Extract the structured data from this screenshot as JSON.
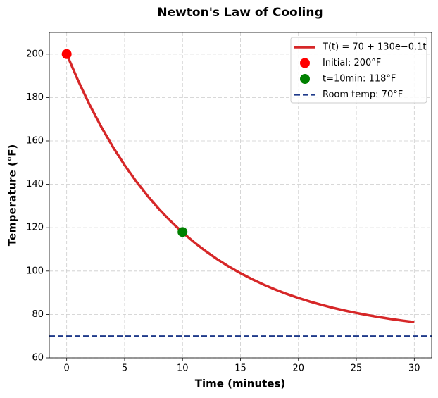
{
  "chart_data": {
    "type": "line",
    "title": "Newton's Law of Cooling",
    "xlabel": "Time (minutes)",
    "ylabel": "Temperature (°F)",
    "xlim": [
      -1.5,
      31.5
    ],
    "ylim": [
      60,
      210
    ],
    "xticks": [
      0,
      5,
      10,
      15,
      20,
      25,
      30
    ],
    "yticks": [
      60,
      80,
      100,
      120,
      140,
      160,
      180,
      200
    ],
    "grid": true,
    "legend": "upper right",
    "series": [
      {
        "name": "T(t) = 70 + 130e−0.1t",
        "type": "line",
        "color": "#d62728",
        "x": [
          0,
          1,
          2,
          3,
          4,
          5,
          6,
          7,
          8,
          9,
          10,
          11,
          12,
          13,
          14,
          15,
          16,
          17,
          18,
          19,
          20,
          21,
          22,
          23,
          24,
          25,
          26,
          27,
          28,
          29,
          30
        ],
        "values": [
          200,
          187.63,
          176.44,
          166.31,
          157.14,
          148.85,
          141.35,
          134.56,
          128.41,
          122.85,
          117.82,
          113.27,
          109.15,
          105.43,
          102.06,
          99.01,
          96.25,
          93.75,
          91.49,
          89.44,
          87.59,
          85.92,
          84.4,
          83.03,
          81.79,
          80.67,
          79.66,
          78.74,
          77.91,
          77.15,
          76.47
        ]
      },
      {
        "name": "Initial: 200°F",
        "type": "scatter",
        "color": "#ff0000",
        "x": [
          0
        ],
        "values": [
          200
        ]
      },
      {
        "name": "t=10min: 118°F",
        "type": "scatter",
        "color": "#008000",
        "x": [
          10
        ],
        "values": [
          118
        ]
      },
      {
        "name": "Room temp: 70°F",
        "type": "hline",
        "color": "#1f3a8a",
        "values": [
          70
        ]
      }
    ]
  }
}
